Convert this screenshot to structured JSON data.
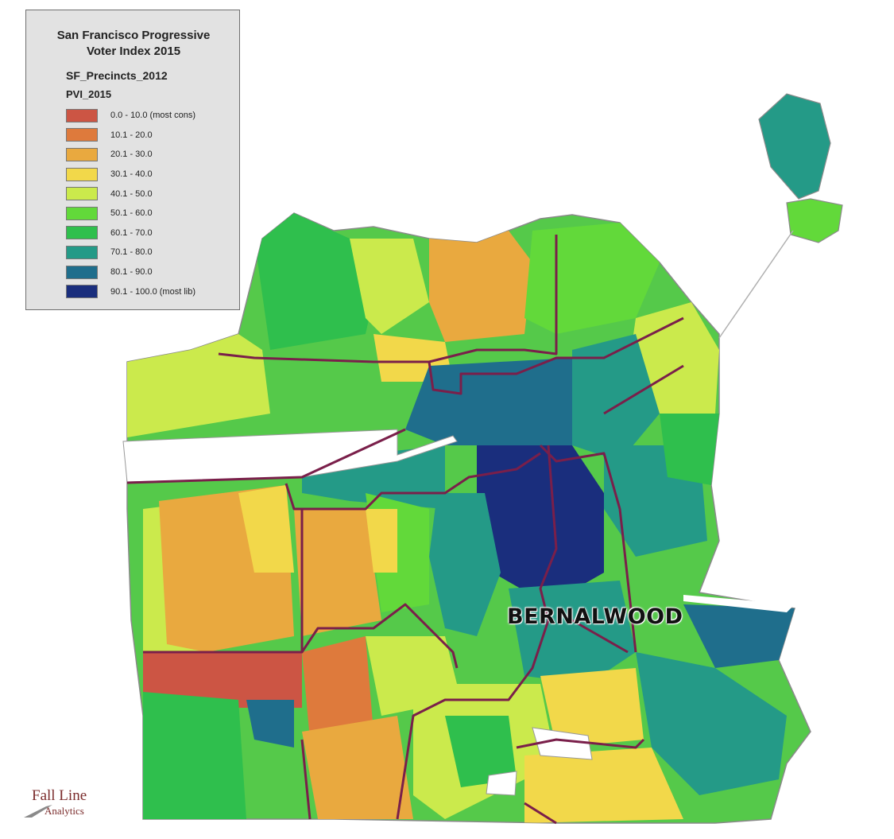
{
  "legend": {
    "title_line1": "San Francisco Progressive",
    "title_line2": "Voter Index 2015",
    "layer_name": "SF_Precincts_2012",
    "field_name": "PVI_2015",
    "classes": [
      {
        "label": "0.0 - 10.0 (most cons)",
        "color": "#cc5544"
      },
      {
        "label": "10.1 - 20.0",
        "color": "#de7a3c"
      },
      {
        "label": "20.1 - 30.0",
        "color": "#e9a93f"
      },
      {
        "label": "30.1 - 40.0",
        "color": "#f2d84a"
      },
      {
        "label": "40.1 - 50.0",
        "color": "#cbea4c"
      },
      {
        "label": "50.1 - 60.0",
        "color": "#62d93a"
      },
      {
        "label": "60.1 - 70.0",
        "color": "#2fbf4d"
      },
      {
        "label": "70.1 - 80.0",
        "color": "#249a87"
      },
      {
        "label": "80.1 - 90.0",
        "color": "#1f6e8c"
      },
      {
        "label": "90.1 - 100.0 (most lib)",
        "color": "#1a2e7d"
      }
    ]
  },
  "map": {
    "highlight_label": "BERNALWOOD",
    "district_line_color": "#7a1f4a",
    "park_color": "#ffffff"
  },
  "logo": {
    "line1": "Fall Line",
    "line2": "Analytics"
  }
}
